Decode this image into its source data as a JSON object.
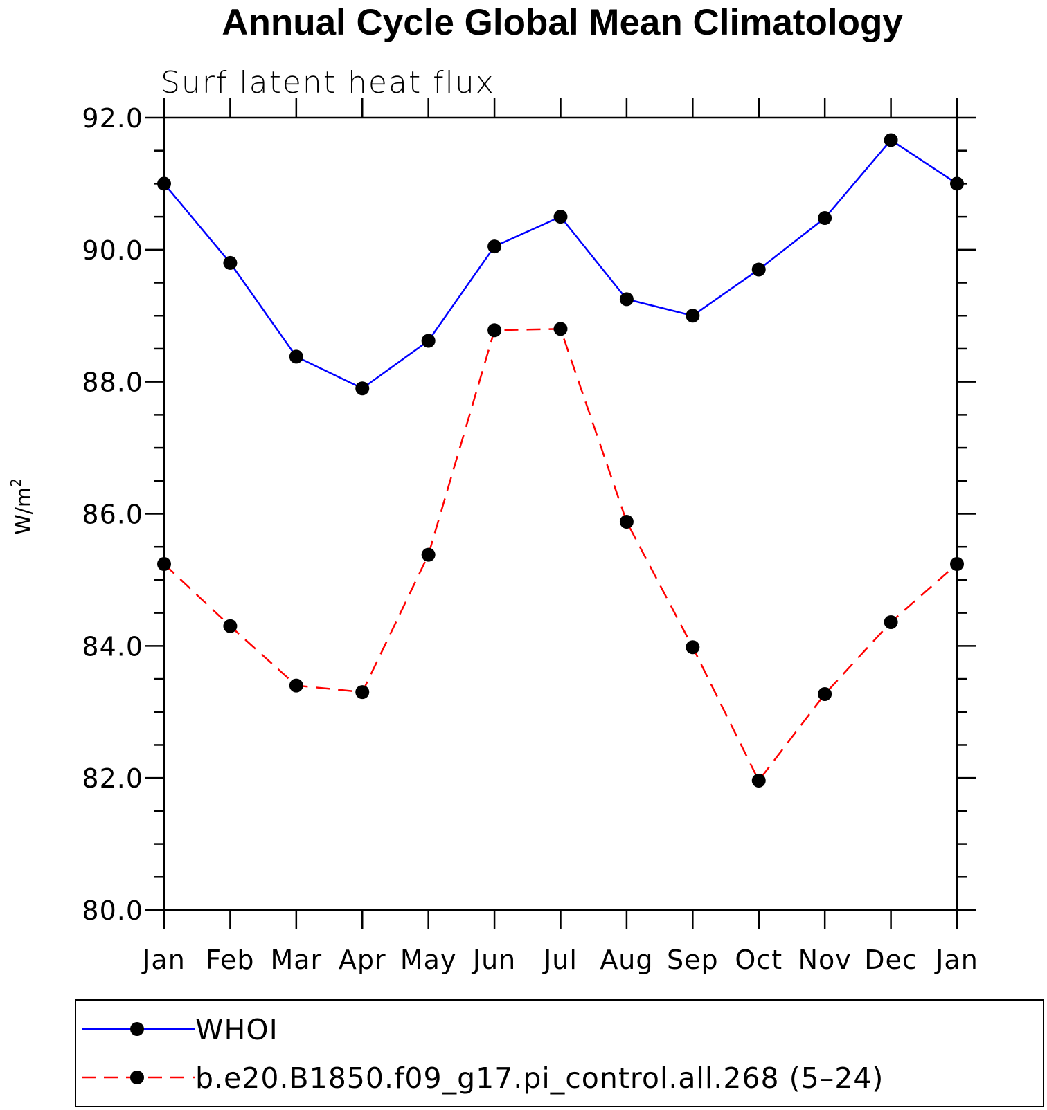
{
  "chart_data": {
    "type": "line",
    "title": "Annual Cycle Global Mean Climatology",
    "subtitle": "Surf latent heat flux",
    "ylabel": "W/m",
    "ylabel_superscript": "2",
    "xlabel": "",
    "ylim": [
      80.0,
      92.0
    ],
    "yticks": [
      {
        "value": 80.0,
        "label": "80.0"
      },
      {
        "value": 82.0,
        "label": "82.0"
      },
      {
        "value": 84.0,
        "label": "84.0"
      },
      {
        "value": 86.0,
        "label": "86.0"
      },
      {
        "value": 88.0,
        "label": "88.0"
      },
      {
        "value": 90.0,
        "label": "90.0"
      },
      {
        "value": 92.0,
        "label": "92.0"
      }
    ],
    "categories": [
      "Jan",
      "Feb",
      "Mar",
      "Apr",
      "May",
      "Jun",
      "Jul",
      "Aug",
      "Sep",
      "Oct",
      "Nov",
      "Dec",
      "Jan"
    ],
    "series": [
      {
        "name": "WHOI",
        "color": "#0000ff",
        "dash": "solid",
        "values": [
          91.0,
          89.8,
          88.38,
          87.9,
          88.62,
          90.05,
          90.5,
          89.25,
          89.0,
          89.7,
          90.48,
          91.66,
          91.0
        ]
      },
      {
        "name": "b.e20.B1850.f09_g17.pi_control.all.268 (5–24)",
        "color": "#ff0000",
        "dash": "dashed",
        "values": [
          85.24,
          84.3,
          83.4,
          83.3,
          85.38,
          88.78,
          88.8,
          85.88,
          83.98,
          81.96,
          83.27,
          84.36,
          85.24
        ]
      }
    ],
    "marker_color": "#000000",
    "legend_position": "bottom"
  }
}
